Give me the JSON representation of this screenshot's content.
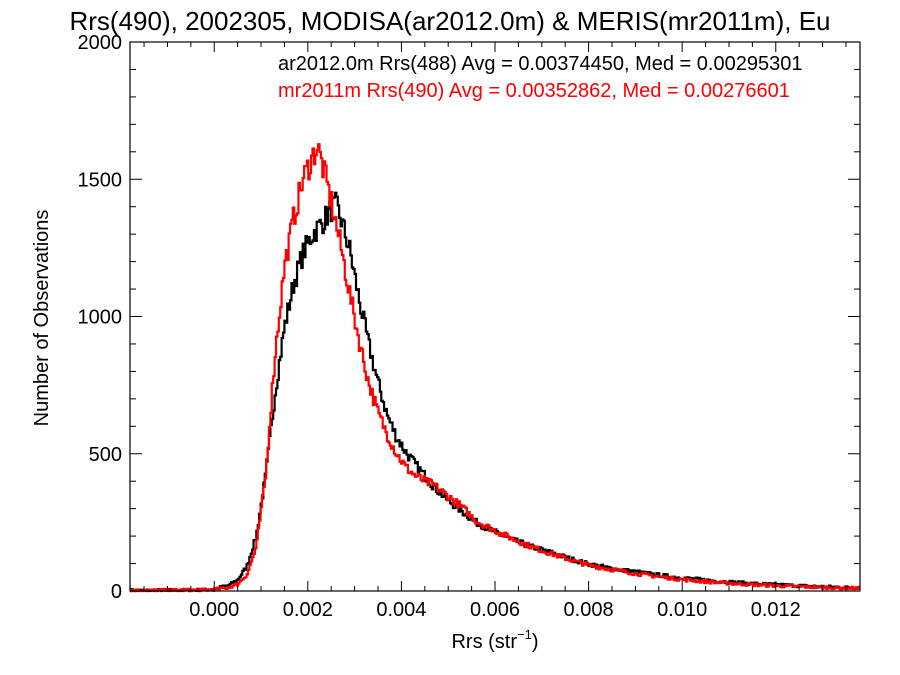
{
  "chart_data": {
    "type": "line",
    "title": "Rrs(490), 2002305, MODISA(ar2012.0m) & MERIS(mr2011m), Eu",
    "xlabel": "Rrs (str",
    "xlabel_sup": "−1",
    "xlabel_end": ")",
    "ylabel": "Number of Observations",
    "xlim": [
      -0.0018,
      0.0138
    ],
    "ylim": [
      0,
      2000
    ],
    "x_ticks": [
      0.0,
      0.002,
      0.004,
      0.006,
      0.008,
      0.01,
      0.012
    ],
    "x_tick_labels": [
      "0.000",
      "0.002",
      "0.004",
      "0.006",
      "0.008",
      "0.010",
      "0.012"
    ],
    "y_ticks": [
      0,
      500,
      1000,
      1500,
      2000
    ],
    "y_tick_labels": [
      "0",
      "500",
      "1000",
      "1500",
      "2000"
    ],
    "grid": false,
    "legend_position": "top-right",
    "series": [
      {
        "name": "ar2012.0m Rrs(488) Avg = 0.00374450, Med = 0.00295301",
        "color": "#000000",
        "x": [
          -0.0018,
          -0.0014,
          -0.001,
          -0.0006,
          -0.0002,
          0.0,
          0.0003,
          0.0005,
          0.0007,
          0.0009,
          0.0011,
          0.0013,
          0.0015,
          0.0017,
          0.0019,
          0.0021,
          0.0023,
          0.0025,
          0.0026,
          0.0027,
          0.0029,
          0.0031,
          0.0033,
          0.0035,
          0.0037,
          0.0039,
          0.0041,
          0.0043,
          0.0045,
          0.0047,
          0.005,
          0.0053,
          0.0056,
          0.006,
          0.0064,
          0.0068,
          0.0072,
          0.0076,
          0.008,
          0.0085,
          0.009,
          0.0095,
          0.01,
          0.0105,
          0.011,
          0.0115,
          0.012,
          0.0125,
          0.013,
          0.0135,
          0.0138
        ],
        "values": [
          2,
          2,
          3,
          3,
          4,
          8,
          20,
          40,
          90,
          200,
          420,
          720,
          960,
          1120,
          1230,
          1300,
          1340,
          1390,
          1405,
          1360,
          1240,
          1060,
          900,
          760,
          640,
          560,
          505,
          460,
          420,
          380,
          330,
          290,
          250,
          215,
          185,
          160,
          140,
          118,
          98,
          82,
          70,
          58,
          48,
          40,
          33,
          27,
          23,
          19,
          16,
          13,
          12
        ]
      },
      {
        "name": "mr2011m Rrs(490) Avg = 0.00352862, Med = 0.00276601",
        "color": "#ff0000",
        "x": [
          -0.0018,
          -0.0014,
          -0.001,
          -0.0006,
          -0.0002,
          0.0,
          0.0003,
          0.0005,
          0.0007,
          0.0009,
          0.0011,
          0.0013,
          0.0015,
          0.0017,
          0.0019,
          0.0021,
          0.0022,
          0.0023,
          0.0025,
          0.0027,
          0.0029,
          0.0031,
          0.0033,
          0.0035,
          0.0037,
          0.0039,
          0.0041,
          0.0043,
          0.0045,
          0.0047,
          0.005,
          0.0053,
          0.0056,
          0.006,
          0.0064,
          0.0068,
          0.0072,
          0.0076,
          0.008,
          0.0085,
          0.009,
          0.0095,
          0.01,
          0.0105,
          0.011,
          0.0115,
          0.012,
          0.0125,
          0.013,
          0.0135,
          0.0138
        ],
        "values": [
          2,
          2,
          3,
          3,
          4,
          6,
          12,
          25,
          60,
          160,
          420,
          860,
          1180,
          1360,
          1500,
          1580,
          1620,
          1560,
          1420,
          1260,
          1080,
          910,
          760,
          650,
          570,
          500,
          450,
          420,
          400,
          385,
          345,
          305,
          255,
          220,
          188,
          160,
          136,
          114,
          94,
          78,
          64,
          52,
          42,
          34,
          28,
          23,
          19,
          16,
          13,
          11,
          10
        ]
      }
    ]
  }
}
